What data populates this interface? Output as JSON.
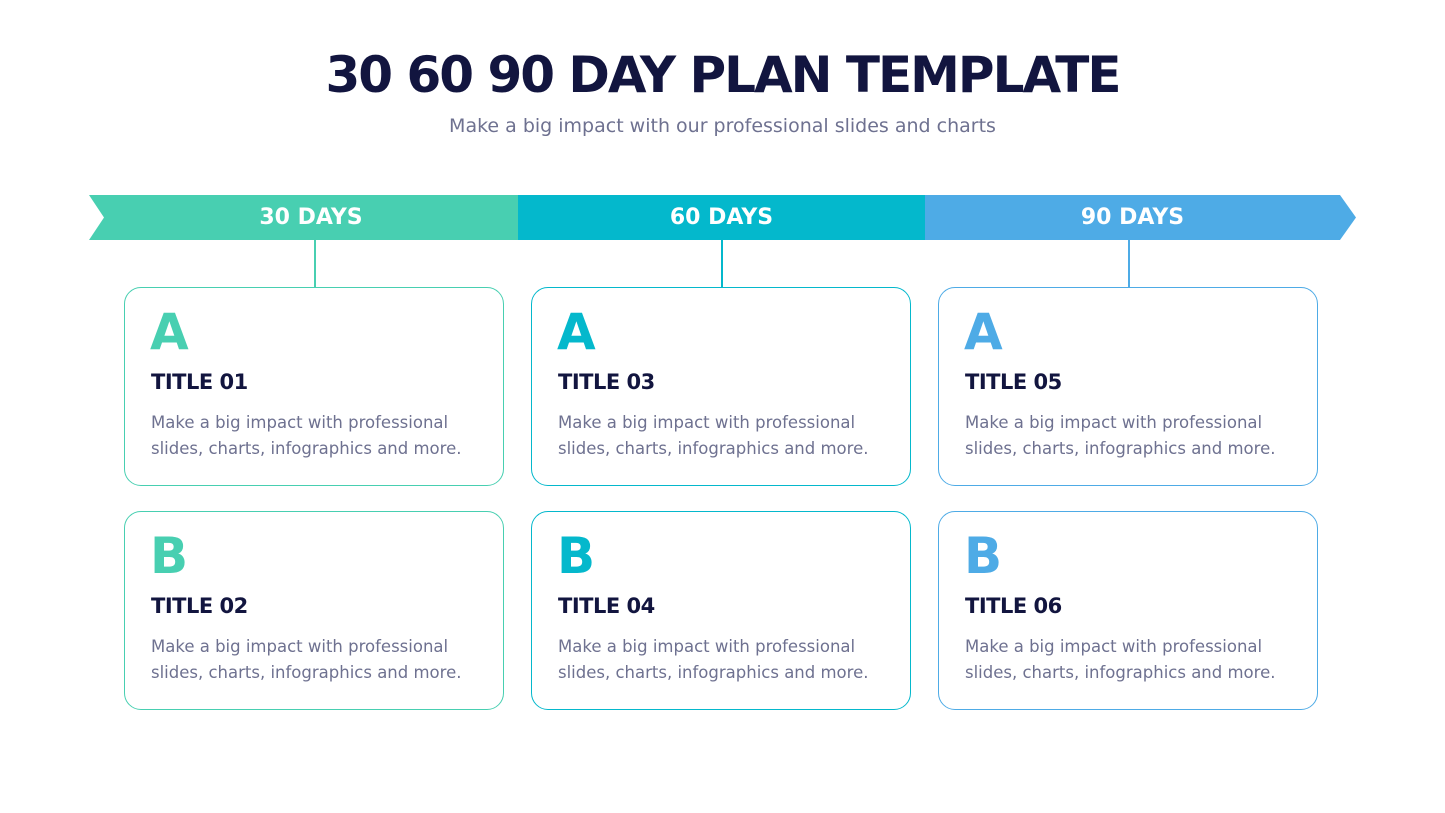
{
  "header": {
    "title": "30 60 90 DAY PLAN TEMPLATE",
    "subtitle": "Make a big impact with our professional slides and charts"
  },
  "colors": {
    "phase1": "#48cfb1",
    "phase2": "#04b8cc",
    "phase3": "#4eabe6",
    "title": "#12153f",
    "body": "#6e7190"
  },
  "phases": [
    {
      "label": "30 DAYS",
      "cards": [
        {
          "letter": "A",
          "title": "TITLE 01",
          "line1": "Make a big impact with professional",
          "line2": "slides, charts, infographics and more."
        },
        {
          "letter": "B",
          "title": "TITLE 02",
          "line1": "Make a big impact with professional",
          "line2": "slides, charts, infographics and more."
        }
      ]
    },
    {
      "label": "60 DAYS",
      "cards": [
        {
          "letter": "A",
          "title": "TITLE 03",
          "line1": "Make a big impact with professional",
          "line2": "slides, charts, infographics and more."
        },
        {
          "letter": "B",
          "title": "TITLE 04",
          "line1": "Make a big impact with professional",
          "line2": "slides, charts, infographics and more."
        }
      ]
    },
    {
      "label": "90 DAYS",
      "cards": [
        {
          "letter": "A",
          "title": "TITLE 05",
          "line1": "Make a big impact with professional",
          "line2": "slides, charts, infographics and more."
        },
        {
          "letter": "B",
          "title": "TITLE 06",
          "line1": "Make a big impact with professional",
          "line2": "slides, charts, infographics and more."
        }
      ]
    }
  ]
}
